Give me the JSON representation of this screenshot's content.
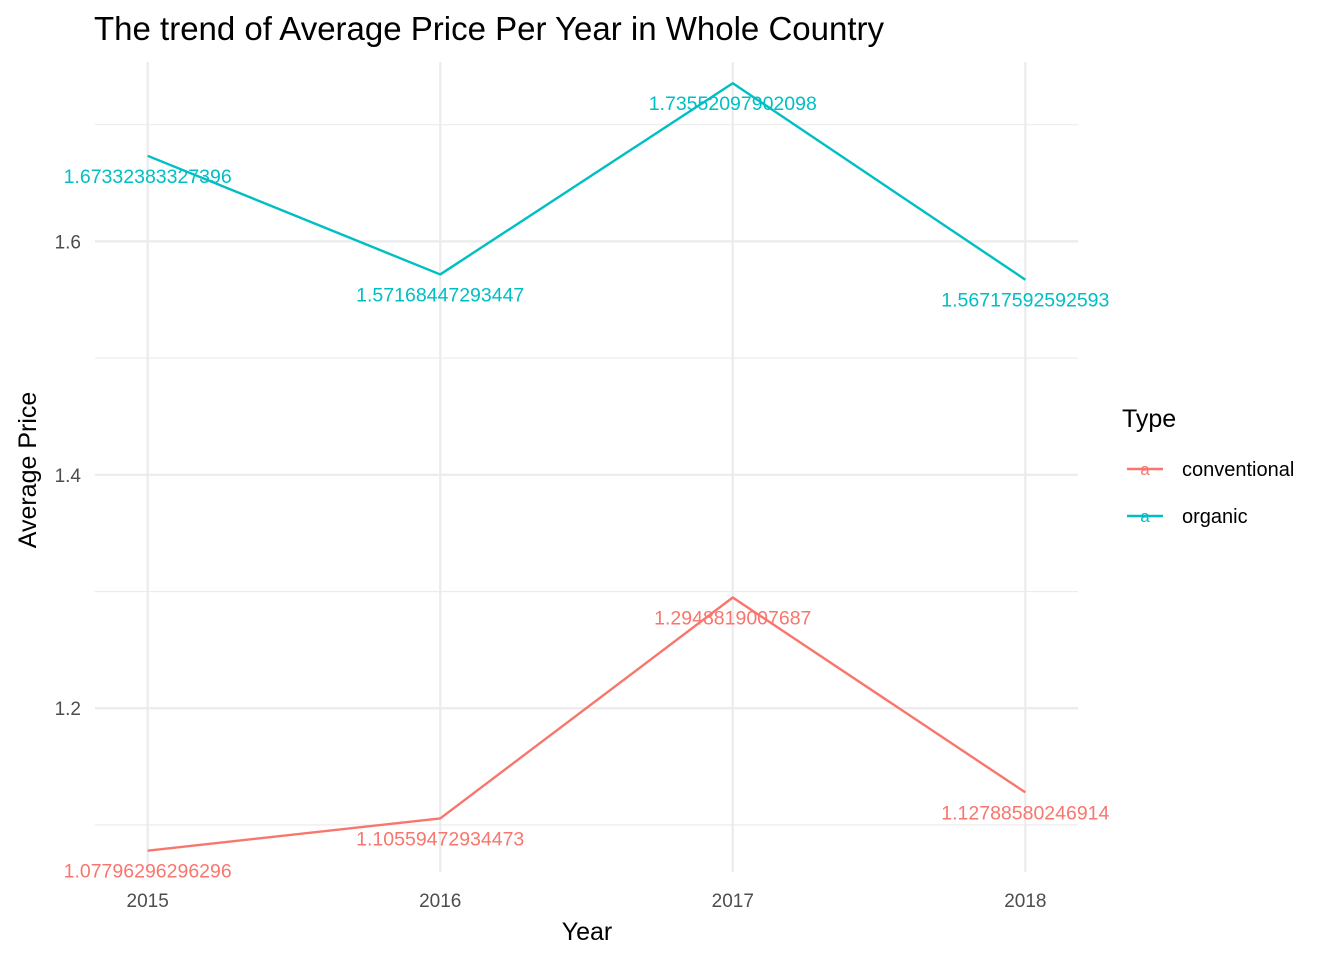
{
  "chart_data": {
    "type": "line",
    "title": "The trend of Average Price Per Year in Whole Country",
    "xlabel": "Year",
    "ylabel": "Average Price",
    "x": [
      2015,
      2016,
      2017,
      2018
    ],
    "x_tick_labels": [
      "2015",
      "2016",
      "2017",
      "2018"
    ],
    "y_ticks": [
      1.2,
      1.4,
      1.6
    ],
    "y_tick_labels": [
      "1.2",
      "1.4",
      "1.6"
    ],
    "ylim": [
      1.0597,
      1.7537
    ],
    "grid": true,
    "legend": {
      "title": "Type",
      "position": "right",
      "key_glyph": "a"
    },
    "series": [
      {
        "name": "conventional",
        "color": "#F8766D",
        "values": [
          1.07796296296296,
          1.10559472934473,
          1.2948819007687,
          1.12788580246914
        ],
        "labels": [
          "1.07796296296296",
          "1.10559472934473",
          "1.2948819007687",
          "1.12788580246914"
        ]
      },
      {
        "name": "organic",
        "color": "#00BFC4",
        "values": [
          1.67332383327396,
          1.57168447293447,
          1.73552097902098,
          1.56717592592593
        ],
        "labels": [
          "1.67332383327396",
          "1.57168447293447",
          "1.73552097902098",
          "1.56717592592593"
        ]
      }
    ]
  }
}
